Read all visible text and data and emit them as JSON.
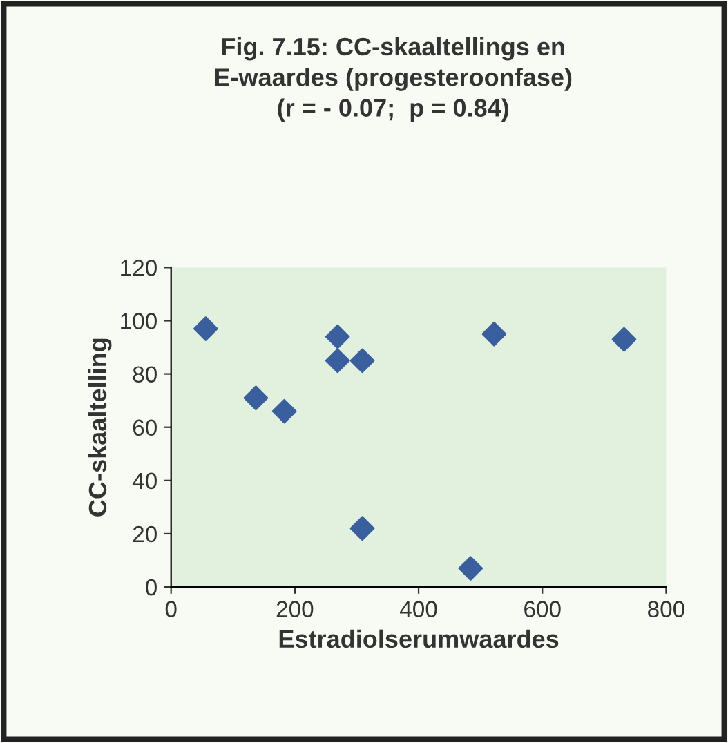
{
  "chart_data": {
    "type": "scatter",
    "title": "Fig. 7.15: CC-skaaltellings en\nE-waardes (progesteroonfase)\n(r = - 0.07;  p = 0.84)",
    "xlabel": "Estradiolserumwaardes",
    "ylabel": "CC-skaaltelling",
    "marker": "diamond",
    "grid": false,
    "legend": false,
    "x": [
      56,
      137,
      183,
      269,
      269,
      309,
      309,
      484,
      522,
      732
    ],
    "series": [
      {
        "color": "#3a5f9f",
        "values": [
          97,
          71,
          66,
          94,
          85,
          85,
          22,
          7,
          95,
          93
        ]
      }
    ],
    "xlim": [
      0,
      800
    ],
    "xticks": [
      0,
      200,
      400,
      600,
      800
    ],
    "ylim": [
      0,
      120
    ],
    "yticks": [
      0,
      20,
      40,
      60,
      80,
      100,
      120
    ]
  }
}
